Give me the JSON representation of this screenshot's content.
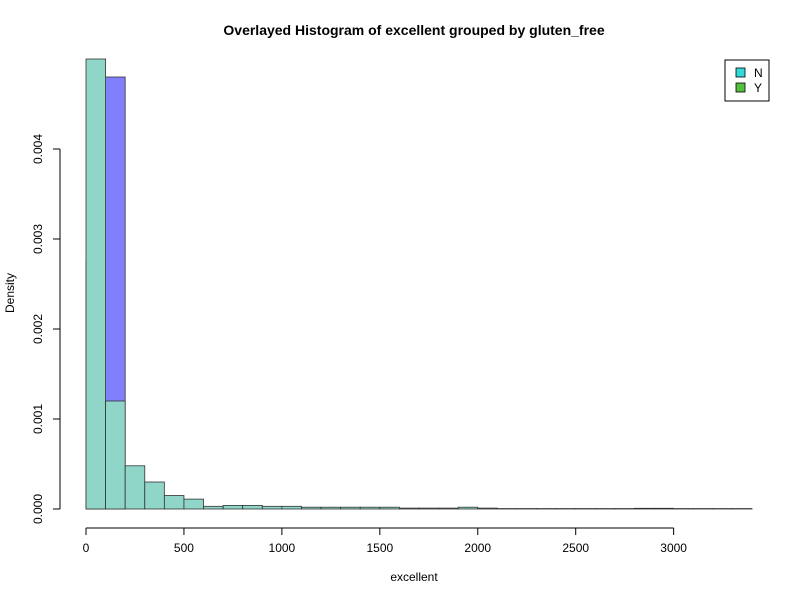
{
  "chart_data": {
    "type": "bar",
    "title": "Overlayed Histogram of excellent grouped by gluten_free",
    "xlabel": "excellent",
    "ylabel": "Density",
    "xlim": [
      0,
      3400
    ],
    "ylim": [
      0,
      0.005
    ],
    "xticks": [
      0,
      500,
      1000,
      1500,
      2000,
      2500,
      3000
    ],
    "yticks": [
      0.0,
      0.001,
      0.002,
      0.003,
      0.004
    ],
    "ytick_labels": [
      "0.000",
      "0.001",
      "0.002",
      "0.003",
      "0.004"
    ],
    "bin_width": 100,
    "bin_start": 0,
    "legend_position": "top-right",
    "series": [
      {
        "name": "Y",
        "color": "#8080ff",
        "values": [
          0.00275,
          0.0048,
          0,
          0,
          0,
          0,
          0,
          0,
          0,
          0,
          0,
          0,
          0,
          0,
          0,
          0,
          0,
          0,
          0,
          0,
          0,
          0,
          0,
          0,
          0,
          0,
          0,
          0,
          0,
          0,
          0,
          0,
          0,
          0
        ]
      },
      {
        "name": "N",
        "color": "#8fd6c8",
        "values": [
          0.00505,
          0.0012,
          0.00048,
          0.0003,
          0.00015,
          0.00011,
          3e-05,
          4e-05,
          4e-05,
          3e-05,
          3e-05,
          2e-05,
          2e-05,
          2e-05,
          2e-05,
          2e-05,
          1e-05,
          1e-05,
          1e-05,
          2e-05,
          1e-05,
          5e-06,
          5e-06,
          5e-06,
          5e-06,
          5e-06,
          5e-06,
          5e-06,
          8e-06,
          8e-06,
          5e-06,
          5e-06,
          5e-06,
          5e-06
        ]
      }
    ],
    "legend": [
      {
        "label": "N",
        "color": "#33d9d9"
      },
      {
        "label": "Y",
        "color": "#55c040"
      }
    ]
  }
}
